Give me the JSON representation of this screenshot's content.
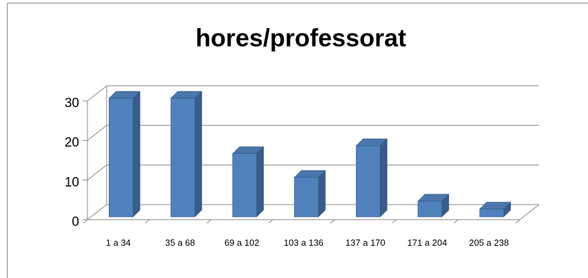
{
  "chart_data": {
    "type": "bar",
    "title": "hores/professorat",
    "categories": [
      "1 a 34",
      "35 a 68",
      "69 a 102",
      "103 a 136",
      "137 a 170",
      "171 a 204",
      "205 a 238"
    ],
    "values": [
      30,
      30,
      16,
      10,
      18,
      4,
      2
    ],
    "color": "#4f81bd",
    "ylim": [
      0,
      30
    ],
    "yticks": [
      0,
      10,
      20,
      30
    ],
    "grid": true
  }
}
